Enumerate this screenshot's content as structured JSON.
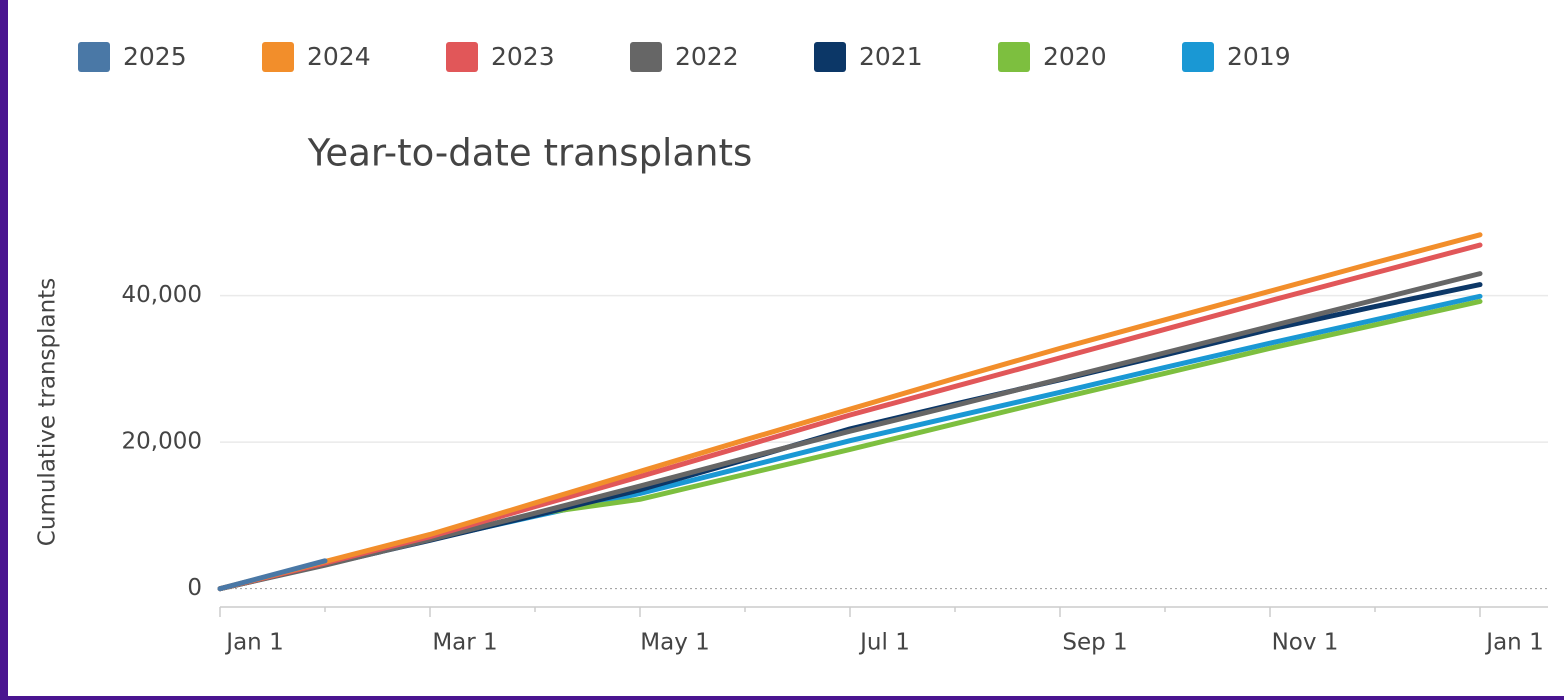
{
  "chart_data": {
    "type": "line",
    "title": "Year-to-date transplants",
    "y_label": "Cumulative transplants",
    "x": [
      "Jan 1",
      null,
      "Mar 1",
      null,
      "May 1",
      null,
      "Jul 1",
      null,
      "Sep 1",
      null,
      "Nov 1",
      null,
      "Jan 1"
    ],
    "series": [
      {
        "name": "2025",
        "color": "#4a78a6",
        "values": [
          0,
          3800,
          null,
          null,
          null,
          null,
          null,
          null,
          null,
          null,
          null,
          null,
          null
        ]
      },
      {
        "name": "2024",
        "color": "#f28e2b",
        "values": [
          0,
          3700,
          7400,
          11700,
          16000,
          20300,
          24500,
          28700,
          32800,
          36700,
          40600,
          44500,
          48300
        ]
      },
      {
        "name": "2023",
        "color": "#e15759",
        "values": [
          0,
          3500,
          7100,
          11200,
          15300,
          19500,
          23700,
          27600,
          31500,
          35400,
          39300,
          43100,
          46900
        ]
      },
      {
        "name": "2022",
        "color": "#666666",
        "values": [
          0,
          3200,
          6700,
          10300,
          14000,
          17800,
          21500,
          25000,
          28600,
          32200,
          35800,
          39400,
          43000
        ]
      },
      {
        "name": "2021",
        "color": "#0c3767",
        "values": [
          0,
          3300,
          6600,
          10000,
          13500,
          17600,
          21800,
          25200,
          28500,
          31900,
          35400,
          38500,
          41500
        ]
      },
      {
        "name": "2020",
        "color": "#7dbf3f",
        "values": [
          0,
          3300,
          6800,
          10200,
          12200,
          15600,
          19000,
          22500,
          26000,
          29400,
          32800,
          36000,
          39200
        ]
      },
      {
        "name": "2019",
        "color": "#1a98d4",
        "values": [
          0,
          3300,
          6700,
          9900,
          13000,
          16600,
          20200,
          23500,
          26800,
          30200,
          33500,
          36700,
          39900
        ]
      }
    ],
    "ylim": [
      -2500,
      51000
    ],
    "yticks": [
      0,
      {
        "value": 20000,
        "label": "20,000"
      },
      {
        "value": 40000,
        "label": "40,000"
      }
    ],
    "grid": true,
    "legend": "top"
  }
}
